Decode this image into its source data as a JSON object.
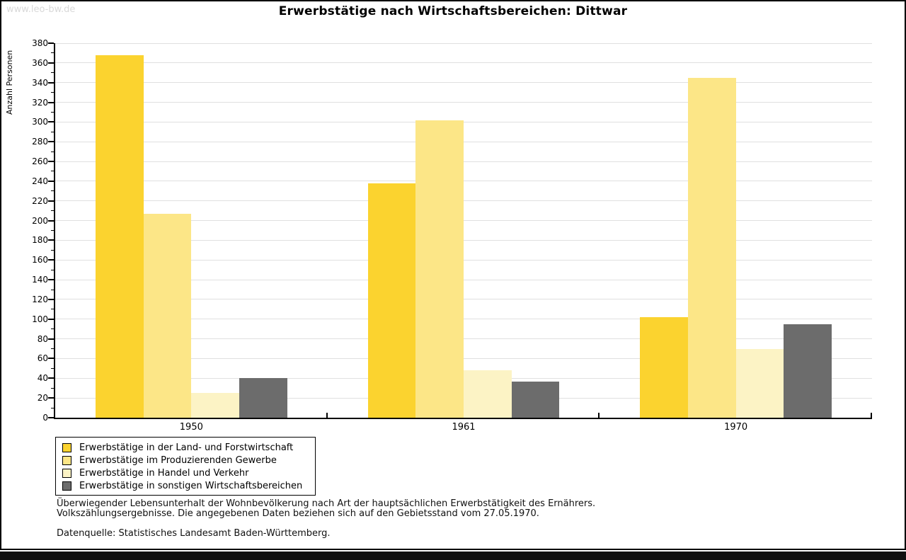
{
  "watermark": "www.leo-bw.de",
  "title": "Erwerbstätige nach Wirtschaftsbereichen: Dittwar",
  "chart_data": {
    "type": "bar",
    "title": "Erwerbstätige nach Wirtschaftsbereichen: Dittwar",
    "xlabel": "",
    "ylabel": "Anzahl Personen",
    "ylim": [
      0,
      380
    ],
    "ytick_step": 20,
    "ytick_minor_step": 10,
    "grid": true,
    "legend_position": "bottom-left",
    "categories": [
      "1950",
      "1961",
      "1970"
    ],
    "series": [
      {
        "name": "Erwerbstätige in der Land- und Forstwirtschaft",
        "color": "#FBD32F",
        "values": [
          368,
          238,
          102
        ]
      },
      {
        "name": "Erwerbstätige im Produzierenden Gewerbe",
        "color": "#FCE687",
        "values": [
          207,
          302,
          345
        ]
      },
      {
        "name": "Erwerbstätige in Handel und Verkehr",
        "color": "#FCF3C5",
        "values": [
          25,
          48,
          70
        ]
      },
      {
        "name": "Erwerbstätige in sonstigen Wirtschaftsbereichen",
        "color": "#6C6C6C",
        "values": [
          40,
          37,
          95
        ]
      }
    ],
    "colors": {
      "axis": "#000000",
      "gridline": "#e0e0e0",
      "watermark_text": "#d9d9d9",
      "frame_border": "#000000"
    }
  },
  "footnotes": [
    "Überwiegender Lebensunterhalt der Wohnbevölkerung nach Art der hauptsächlichen Erwerbstätigkeit des Ernährers.",
    "Volkszählungsergebnisse. Die angegebenen Daten beziehen sich auf den Gebietsstand vom 27.05.1970."
  ],
  "source": "Datenquelle: Statistisches Landesamt Baden-Württemberg."
}
